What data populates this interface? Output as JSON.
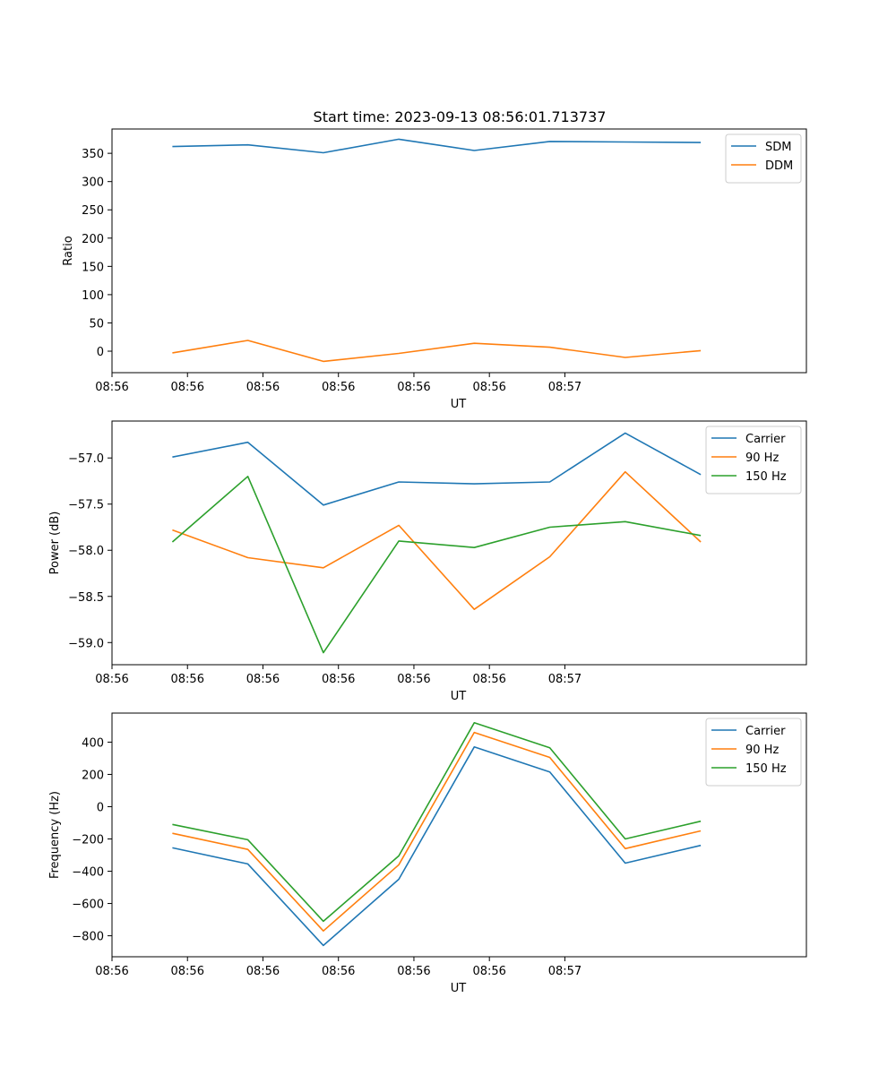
{
  "title": "Start time: 2023-09-13 08:56:01.713737",
  "x_tick_labels": [
    "08:56",
    "08:56",
    "08:56",
    "08:56",
    "08:56",
    "08:56",
    "08:57"
  ],
  "chart_data": [
    {
      "type": "line",
      "title": "Start time: 2023-09-13 08:56:01.713737",
      "xlabel": "UT",
      "ylabel": "Ratio",
      "x": [
        1,
        2,
        3,
        4,
        5,
        6,
        7,
        8
      ],
      "xlim": [
        0.2,
        9.4
      ],
      "ylim": [
        -38,
        393
      ],
      "yticks": [
        0,
        50,
        100,
        150,
        200,
        250,
        300,
        350
      ],
      "ytick_labels": [
        "0",
        "50",
        "100",
        "150",
        "200",
        "250",
        "300",
        "350"
      ],
      "legend_position": "top-right",
      "series": [
        {
          "name": "SDM",
          "color": "#1f77b4",
          "values": [
            362,
            365,
            351,
            375,
            355,
            371,
            370,
            369
          ]
        },
        {
          "name": "DDM",
          "color": "#ff7f0e",
          "values": [
            -3,
            19,
            -18,
            -4,
            14,
            7,
            -11,
            1
          ]
        }
      ]
    },
    {
      "type": "line",
      "title": "",
      "xlabel": "UT",
      "ylabel": "Power (dB)",
      "x": [
        1,
        2,
        3,
        4,
        5,
        6,
        7,
        8
      ],
      "xlim": [
        0.2,
        9.4
      ],
      "ylim": [
        -59.24,
        -56.6
      ],
      "yticks": [
        -59.0,
        -58.5,
        -58.0,
        -57.5,
        -57.0
      ],
      "ytick_labels": [
        "−59.0",
        "−58.5",
        "−58.0",
        "−57.5",
        "−57.0"
      ],
      "legend_position": "top-right",
      "series": [
        {
          "name": "Carrier",
          "color": "#1f77b4",
          "values": [
            -56.99,
            -56.83,
            -57.51,
            -57.26,
            -57.28,
            -57.26,
            -56.73,
            -57.18
          ]
        },
        {
          "name": "90 Hz",
          "color": "#ff7f0e",
          "values": [
            -57.78,
            -58.08,
            -58.19,
            -57.73,
            -58.64,
            -58.07,
            -57.15,
            -57.91
          ]
        },
        {
          "name": "150 Hz",
          "color": "#2ca02c",
          "values": [
            -57.91,
            -57.2,
            -59.11,
            -57.9,
            -57.97,
            -57.75,
            -57.69,
            -57.84
          ]
        }
      ]
    },
    {
      "type": "line",
      "title": "",
      "xlabel": "UT",
      "ylabel": "Frequency (Hz)",
      "x": [
        1,
        2,
        3,
        4,
        5,
        6,
        7,
        8
      ],
      "xlim": [
        0.2,
        9.4
      ],
      "ylim": [
        -930,
        580
      ],
      "yticks": [
        -800,
        -600,
        -400,
        -200,
        0,
        200,
        400
      ],
      "ytick_labels": [
        "−800",
        "−600",
        "−400",
        "−200",
        "0",
        "200",
        "400"
      ],
      "legend_position": "top-right",
      "series": [
        {
          "name": "Carrier",
          "color": "#1f77b4",
          "values": [
            -255,
            -355,
            -860,
            -450,
            370,
            215,
            -350,
            -240
          ]
        },
        {
          "name": "90 Hz",
          "color": "#ff7f0e",
          "values": [
            -165,
            -265,
            -770,
            -360,
            460,
            305,
            -260,
            -150
          ]
        },
        {
          "name": "150 Hz",
          "color": "#2ca02c",
          "values": [
            -110,
            -205,
            -710,
            -305,
            520,
            365,
            -200,
            -90
          ]
        }
      ]
    }
  ]
}
